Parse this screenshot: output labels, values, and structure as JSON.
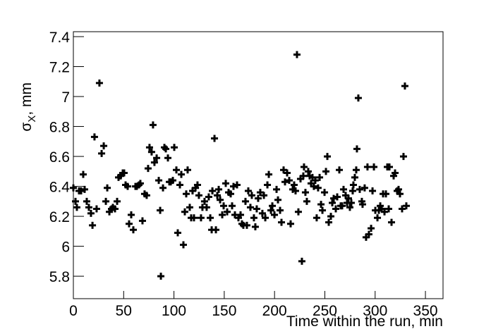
{
  "chart_data": {
    "type": "scatter",
    "ylabel": {
      "symbol": "σ",
      "subscript": "X",
      "unit": ", mm"
    },
    "xlabel": "Time within the run, min",
    "color": "#000000",
    "xlim": [
      0,
      367.5
    ],
    "xticks": [
      0,
      50,
      100,
      150,
      200,
      250,
      300,
      350
    ],
    "ylim": [
      5.65,
      7.433
    ],
    "yticks": [
      5.8,
      6,
      6.2,
      6.4,
      6.6,
      6.8,
      7,
      7.2,
      7.4
    ],
    "x": [
      0,
      2.1,
      3.5,
      5.6,
      7.7,
      9.8,
      11.2,
      13.3,
      15.4,
      17.5,
      19.0,
      21.0,
      23.1,
      25.9,
      28.1,
      30.2,
      32.3,
      33.7,
      35.8,
      37.9,
      39.3,
      41.4,
      43.5,
      44.9,
      47.0,
      49.1,
      50.5,
      51.9,
      54.0,
      55.4,
      57.5,
      59.6,
      61.7,
      63.1,
      65.2,
      66.6,
      68.7,
      70.8,
      72.9,
      74.3,
      75.7,
      77.8,
      79.2,
      80.6,
      82.8,
      84.9,
      86.3,
      87.0,
      89.1,
      90.5,
      91.9,
      94.0,
      95.4,
      96.8,
      98.9,
      100.3,
      102.4,
      103.8,
      105.9,
      107.3,
      109.4,
      110.8,
      112.2,
      113.6,
      115.7,
      117.1,
      118.5,
      119.9,
      121.4,
      123.4,
      124.8,
      126.9,
      128.3,
      130.4,
      132.5,
      134.6,
      136.1,
      137.5,
      138.2,
      140.3,
      141.7,
      143.1,
      144.5,
      145.9,
      148.0,
      149.4,
      151.5,
      152.9,
      154.3,
      156.4,
      157.8,
      159.2,
      160.6,
      162.7,
      164.1,
      166.2,
      167.6,
      169.0,
      171.1,
      172.5,
      173.9,
      176.0,
      177.4,
      179.5,
      180.9,
      182.3,
      183.7,
      185.8,
      187.9,
      189.4,
      190.8,
      192.9,
      194.3,
      196.4,
      197.8,
      199.9,
      202.0,
      203.4,
      205.5,
      206.9,
      209.0,
      210.4,
      212.5,
      214.6,
      216.0,
      218.1,
      219.5,
      220.9,
      222.3,
      223.7,
      225.8,
      227.2,
      228.6,
      229.3,
      230.7,
      232.1,
      233.5,
      234.9,
      236.3,
      237.7,
      239.1,
      240.5,
      241.9,
      243.3,
      244.8,
      246.2,
      247.6,
      249.7,
      251.1,
      252.5,
      253.9,
      256.0,
      257.4,
      258.8,
      260.9,
      262.3,
      264.4,
      265.8,
      267.2,
      268.6,
      270.7,
      272.1,
      273.5,
      274.9,
      276.3,
      277.7,
      278.4,
      279.8,
      281.2,
      281.9,
      283.3,
      284.7,
      286.8,
      287.5,
      289.6,
      291.0,
      292.4,
      293.8,
      296.0,
      297.4,
      298.8,
      300.2,
      302.3,
      303.7,
      305.1,
      306.5,
      307.9,
      309.3,
      310.7,
      312.1,
      313.5,
      314.2,
      316.3,
      318.4,
      319.8,
      321.9,
      323.3,
      324.7,
      326.8,
      328.2,
      329.6,
      331.0
    ],
    "values": [
      6.39,
      6.3,
      6.26,
      6.37,
      6.37,
      6.48,
      6.38,
      6.3,
      6.26,
      6.22,
      6.14,
      6.73,
      6.25,
      7.09,
      6.62,
      6.67,
      6.3,
      6.39,
      6.23,
      6.25,
      6.26,
      6.25,
      6.3,
      6.46,
      6.47,
      6.49,
      6.49,
      6.41,
      6.4,
      6.15,
      6.21,
      6.11,
      6.4,
      6.4,
      6.41,
      6.42,
      6.17,
      6.35,
      6.34,
      6.52,
      6.66,
      6.63,
      6.81,
      6.56,
      6.59,
      6.44,
      6.24,
      5.8,
      6.39,
      6.66,
      6.65,
      6.59,
      6.43,
      6.43,
      6.44,
      6.66,
      6.51,
      6.09,
      6.41,
      6.48,
      6.01,
      6.23,
      6.35,
      6.51,
      6.26,
      6.19,
      6.37,
      6.19,
      6.39,
      6.41,
      6.34,
      6.19,
      6.26,
      6.3,
      6.26,
      6.33,
      6.19,
      6.11,
      6.37,
      6.72,
      6.11,
      6.34,
      6.38,
      6.31,
      6.21,
      6.27,
      6.42,
      6.23,
      6.36,
      6.35,
      6.27,
      6.4,
      6.21,
      6.41,
      6.19,
      6.21,
      6.15,
      6.14,
      6.3,
      6.14,
      6.37,
      6.26,
      6.34,
      6.19,
      6.13,
      6.25,
      6.32,
      6.36,
      6.22,
      6.34,
      6.19,
      6.41,
      6.48,
      6.24,
      6.27,
      6.21,
      6.38,
      6.31,
      6.24,
      6.16,
      6.51,
      6.43,
      6.49,
      6.44,
      6.15,
      6.38,
      6.41,
      6.37,
      7.28,
      6.23,
      6.45,
      5.9,
      6.47,
      6.53,
      6.36,
      6.3,
      6.5,
      6.47,
      6.42,
      6.46,
      6.4,
      6.44,
      6.19,
      6.39,
      6.46,
      6.28,
      6.24,
      6.36,
      6.5,
      6.6,
      6.16,
      6.2,
      6.29,
      6.32,
      6.25,
      6.33,
      6.51,
      6.27,
      6.27,
      6.38,
      6.34,
      6.29,
      6.32,
      6.26,
      6.29,
      6.37,
      6.41,
      6.46,
      6.51,
      6.65,
      6.99,
      6.38,
      6.3,
      6.28,
      6.39,
      6.06,
      6.53,
      6.08,
      6.12,
      6.37,
      6.53,
      6.24,
      6.19,
      6.24,
      6.27,
      6.25,
      6.35,
      6.23,
      6.35,
      6.53,
      6.25,
      6.53,
      6.16,
      6.47,
      6.49,
      6.37,
      6.38,
      6.35,
      6.25,
      6.6,
      7.07,
      6.27
    ]
  }
}
